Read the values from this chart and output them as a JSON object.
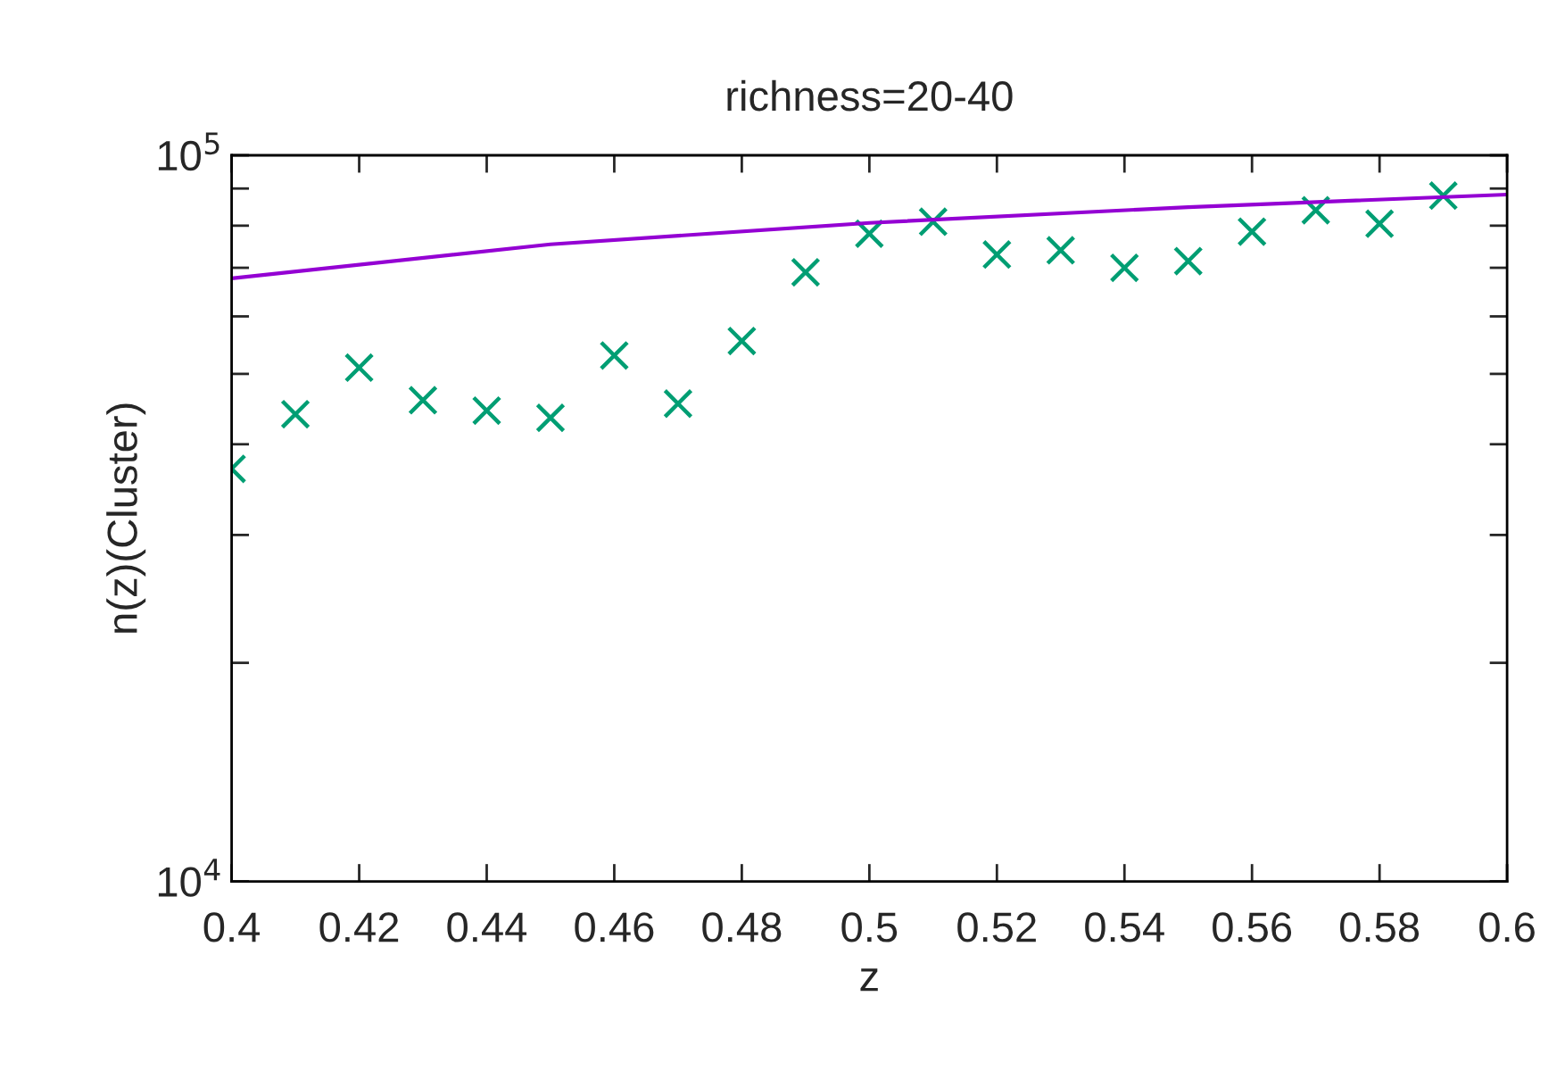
{
  "chart_data": {
    "type": "scatter",
    "title": "richness=20-40",
    "xlabel": "z",
    "ylabel": "n(z)(Cluster)",
    "log": "y",
    "xlim": [
      0.4,
      0.6
    ],
    "xticks": [
      0.4,
      0.42,
      0.44,
      0.46,
      0.48,
      0.5,
      0.52,
      0.54,
      0.56,
      0.58,
      0.6
    ],
    "ylim": [
      10000,
      100000
    ],
    "yticks": [
      {
        "value": 10000,
        "label": "10$^{4}$"
      },
      {
        "value": 20000,
        "label": null
      },
      {
        "value": 30000,
        "label": null
      },
      {
        "value": 40000,
        "label": null
      },
      {
        "value": 50000,
        "label": null
      },
      {
        "value": 60000,
        "label": null
      },
      {
        "value": 70000,
        "label": null
      },
      {
        "value": 80000,
        "label": null
      },
      {
        "value": 90000,
        "label": null
      },
      {
        "value": 100000,
        "label": "10$^{5}$"
      }
    ],
    "grid": false,
    "legend": false,
    "series": [
      {
        "type": "line",
        "color": "#9400d3",
        "marker": "none",
        "line_style": "solid",
        "x": [
          0.4,
          0.45,
          0.5,
          0.55,
          0.6
        ],
        "values": [
          67700,
          75400,
          80700,
          84850,
          88300
        ]
      },
      {
        "color": "#009e73",
        "marker": "cross",
        "x": [
          0.4,
          0.41,
          0.42,
          0.43,
          0.44,
          0.45,
          0.46,
          0.47,
          0.48,
          0.49,
          0.5,
          0.51,
          0.52,
          0.53,
          0.54,
          0.55,
          0.56,
          0.57,
          0.58,
          0.59
        ],
        "values": [
          37000,
          44000,
          51000,
          46000,
          44500,
          43500,
          53000,
          45500,
          55500,
          69000,
          78000,
          81000,
          73000,
          74000,
          70000,
          71500,
          78500,
          84000,
          80500,
          88000
        ]
      }
    ]
  }
}
